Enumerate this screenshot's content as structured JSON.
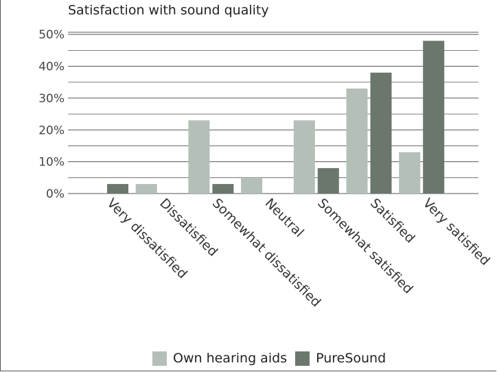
{
  "chart_data": {
    "type": "bar",
    "title": "Satisfaction with sound quality",
    "xlabel": "",
    "ylabel": "",
    "categories": [
      "Very dissatisfied",
      "Dissatisfied",
      "Somewhat dissatisfied",
      "Neutral",
      "Somewhat satisfied",
      "Satisfied",
      "Very satisfied"
    ],
    "series": [
      {
        "name": "Own hearing aids",
        "color": "#b4bfb8",
        "values": [
          0,
          3,
          23,
          5,
          23,
          33,
          13
        ]
      },
      {
        "name": "PureSound",
        "color": "#6b776d",
        "values": [
          3,
          0,
          3,
          0,
          8,
          38,
          48
        ]
      }
    ],
    "yticks": [
      "0%",
      "10%",
      "20%",
      "30%",
      "40%",
      "50%"
    ],
    "ylim": [
      0,
      55
    ],
    "grid": true,
    "legend_position": "bottom"
  }
}
